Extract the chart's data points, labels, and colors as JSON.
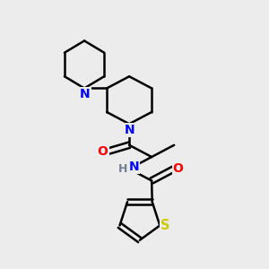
{
  "background_color": "#ececec",
  "atom_colors": {
    "N": "#0000ff",
    "O": "#ff0000",
    "S": "#cccc00",
    "C": "#000000",
    "H": "#708090"
  },
  "bond_color": "#000000",
  "bond_width": 1.8,
  "figsize": [
    3.0,
    3.0
  ],
  "dpi": 100
}
